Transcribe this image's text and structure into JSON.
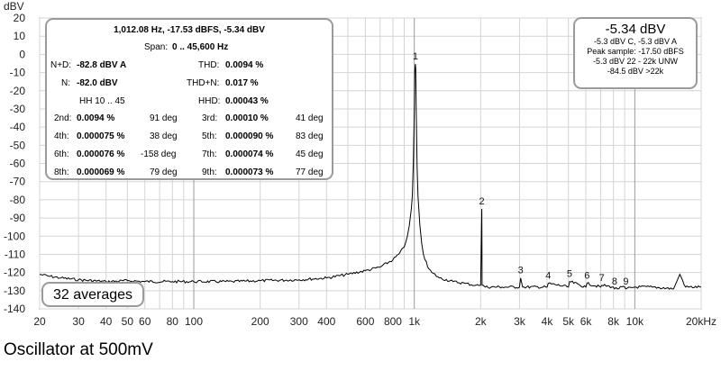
{
  "chart_data": {
    "type": "line",
    "xscale": "log",
    "ylabel": "dBV",
    "xunit": "kHz",
    "xlim": [
      20,
      20000
    ],
    "ylim": [
      -140,
      20
    ],
    "grid": true,
    "yticks": [
      20,
      10,
      0,
      -10,
      -20,
      -30,
      -40,
      -50,
      -60,
      -70,
      -80,
      -90,
      -100,
      -110,
      -120,
      -130,
      -140
    ],
    "xticks": [
      {
        "v": 20,
        "t": "20"
      },
      {
        "v": 30,
        "t": "30"
      },
      {
        "v": 40,
        "t": "40"
      },
      {
        "v": 50,
        "t": "50"
      },
      {
        "v": 60,
        "t": "60"
      },
      {
        "v": 80,
        "t": "80"
      },
      {
        "v": 100,
        "t": "100"
      },
      {
        "v": 200,
        "t": "200"
      },
      {
        "v": 300,
        "t": "300"
      },
      {
        "v": 400,
        "t": "400"
      },
      {
        "v": 600,
        "t": "600"
      },
      {
        "v": 800,
        "t": "800"
      },
      {
        "v": 1000,
        "t": "1k"
      },
      {
        "v": 2000,
        "t": "2k"
      },
      {
        "v": 3000,
        "t": "3k"
      },
      {
        "v": 4000,
        "t": "4k"
      },
      {
        "v": 5000,
        "t": "5k"
      },
      {
        "v": 6000,
        "t": "6k"
      },
      {
        "v": 8000,
        "t": "8k"
      },
      {
        "v": 10000,
        "t": "10k"
      },
      {
        "v": 20000,
        "t": "20kHz"
      }
    ],
    "series": [
      {
        "color": "#000000",
        "x": [
          20,
          22,
          25,
          30,
          40,
          50,
          60,
          80,
          100,
          150,
          200,
          300,
          400,
          500,
          600,
          700,
          800,
          850,
          900,
          930,
          950,
          970,
          980,
          990,
          1000,
          1005,
          1010,
          1012,
          1015,
          1020,
          1030,
          1040,
          1060,
          1080,
          1100,
          1150,
          1200,
          1300,
          1500,
          1700,
          1900,
          1990,
          2000,
          2024,
          2030,
          2050,
          2100,
          2500,
          3000,
          3036,
          3100,
          4000,
          4048,
          5000,
          5060,
          6000,
          6072,
          7000,
          7084,
          8000,
          8096,
          9000,
          9108,
          10000,
          12000,
          15000,
          16000,
          17000,
          20000
        ],
        "y": [
          -121,
          -122,
          -123,
          -124,
          -125,
          -124.5,
          -125,
          -125,
          -125,
          -125,
          -124.5,
          -124,
          -123,
          -121,
          -119,
          -117,
          -113,
          -110,
          -106,
          -100,
          -94,
          -85,
          -78,
          -60,
          -30,
          -10,
          -6,
          -5.34,
          -8,
          -30,
          -62,
          -78,
          -94,
          -104,
          -110,
          -117,
          -120,
          -123,
          -125,
          -126,
          -127,
          -127,
          -127,
          -85,
          -127,
          -127,
          -128,
          -128,
          -128,
          -123,
          -128,
          -128,
          -126,
          -128,
          -125,
          -128,
          -126,
          -128,
          -127,
          -128,
          -129,
          -128,
          -129,
          -128,
          -128,
          -129,
          -121,
          -128,
          -128
        ]
      }
    ],
    "harmonic_labels": [
      {
        "t": "1",
        "x": 1012,
        "y": -5.34
      },
      {
        "t": "2",
        "x": 2024,
        "y": -85
      },
      {
        "t": "3",
        "x": 3036,
        "y": -123
      },
      {
        "t": "4",
        "x": 4048,
        "y": -126
      },
      {
        "t": "5",
        "x": 5060,
        "y": -125
      },
      {
        "t": "6",
        "x": 6072,
        "y": -126
      },
      {
        "t": "7",
        "x": 7084,
        "y": -127
      },
      {
        "t": "8",
        "x": 8096,
        "y": -129
      },
      {
        "t": "9",
        "x": 9108,
        "y": -129
      }
    ]
  },
  "infobox": {
    "title": "1,012.08 Hz, -17.53 dBFS, -5.34 dBV",
    "span_label": "Span:",
    "span_value": "0 .. 45,600 Hz",
    "nd_label": "N+D:",
    "nd_value": "-82.8 dBV A",
    "thd_label": "THD:",
    "thd_value": "0.0094 %",
    "n_label": "N:",
    "n_value": "-82.0 dBV",
    "thdn_label": "THD+N:",
    "thdn_value": "0.017 %",
    "hh_label": "HH 10 .. 45",
    "hhd_label": "HHD:",
    "hhd_value": "0.00043 %",
    "harmonics": [
      {
        "l1": "2nd:",
        "v1": "0.0094 %",
        "d1": "91 deg",
        "l2": "3rd:",
        "v2": "0.00010 %",
        "d2": "41 deg"
      },
      {
        "l1": "4th:",
        "v1": "0.000075 %",
        "d1": "38 deg",
        "l2": "5th:",
        "v2": "0.000090 %",
        "d2": "83 deg"
      },
      {
        "l1": "6th:",
        "v1": "0.000076 %",
        "d1": "-158 deg",
        "l2": "7th:",
        "v2": "0.000074 %",
        "d2": "45 deg"
      },
      {
        "l1": "8th:",
        "v1": "0.000069 %",
        "d1": "79 deg",
        "l2": "9th:",
        "v2": "0.000073 %",
        "d2": "77 deg"
      }
    ]
  },
  "levelbox": {
    "main": "-5.34 dBV",
    "line1": "-5.3 dBV C, -5.3 dBV A",
    "line2": "Peak sample: -17.50 dBFS",
    "line3": "-5.3 dBV 22 - 22k UNW",
    "line4": "-84.5 dBV >22k"
  },
  "averages": "32 averages",
  "caption": "Oscillator at 500mV"
}
